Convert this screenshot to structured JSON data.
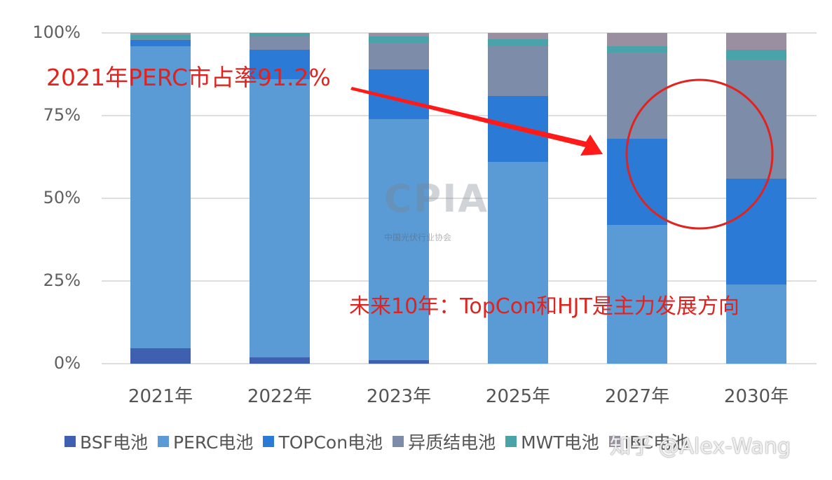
{
  "chart_data": {
    "type": "bar",
    "stacked": true,
    "title": "",
    "xlabel": "",
    "ylabel": "",
    "ylim": [
      0,
      100
    ],
    "yticks": [
      "0%",
      "25%",
      "50%",
      "75%",
      "100%"
    ],
    "grid": true,
    "legend_position": "bottom",
    "categories": [
      "2021年",
      "2022年",
      "2023年",
      "2025年",
      "2027年",
      "2030年"
    ],
    "series": [
      {
        "name": "BSF电池",
        "color": "#3f5fb0",
        "values": [
          4.7,
          2.0,
          1.0,
          0,
          0,
          0
        ]
      },
      {
        "name": "PERC电池",
        "color": "#5b9bd5",
        "values": [
          91.2,
          84.0,
          73.0,
          61.0,
          42.0,
          24.0
        ]
      },
      {
        "name": "TOPCon电池",
        "color": "#2b7bd6",
        "values": [
          2.0,
          9.0,
          15.0,
          20.0,
          26.0,
          32.0
        ]
      },
      {
        "name": "异质结电池",
        "color": "#7d8ca8",
        "values": [
          0.5,
          4.0,
          8.0,
          15.0,
          26.0,
          36.0
        ]
      },
      {
        "name": "MWT电池",
        "color": "#4aa3a8",
        "values": [
          1.0,
          1.0,
          2.0,
          2.0,
          2.0,
          3.0
        ]
      },
      {
        "name": "IBC电池",
        "color": "#9a8fa0",
        "values": [
          0.6,
          0,
          1.0,
          2.0,
          4.0,
          5.0
        ]
      }
    ],
    "annotations": [
      {
        "text": "2021年PERC市占率91.2%",
        "color": "#e0231f"
      },
      {
        "text": "未来10年：TopCon和HJT是主力发展方向",
        "color": "#e0231f"
      },
      {
        "shape": "arrow",
        "from": "2023年 area",
        "to": "2027年 bar",
        "color": "#ff1a1a"
      },
      {
        "shape": "circle",
        "around": "2027–2030 HJT/TOPCon region",
        "color": "#e0231f"
      }
    ],
    "watermarks": [
      "CPIA",
      "中国光伏行业协会",
      "知乎 @Alex-Wang"
    ]
  },
  "legend_truncated_labels": [
    "MWT电池",
    "IBC电池"
  ],
  "watermark": {
    "logo": "CPIA",
    "logo_sub": "中国光伏行业协会",
    "credit": "知乎 @Alex-Wang"
  }
}
